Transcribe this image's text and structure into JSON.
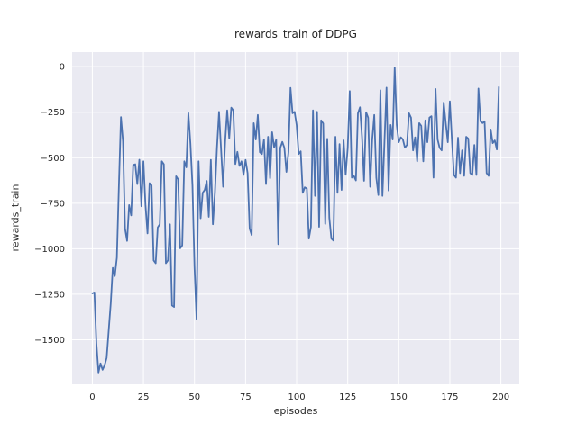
{
  "title": "rewards_train of DDPG",
  "xlabel": "episodes",
  "ylabel": "rewards_train",
  "colors": {
    "figure_background": "#ffffff",
    "panel_background": "#eaeaf2",
    "grid": "#ffffff",
    "line": "#4c72b0",
    "text": "#262626"
  },
  "chart_data": {
    "type": "line",
    "title": "rewards_train of DDPG",
    "xlabel": "episodes",
    "ylabel": "rewards_train",
    "grid": true,
    "legend_position": "none",
    "xlim": [
      -9.9,
      209
    ],
    "ylim": [
      -1745,
      80
    ],
    "xticks": [
      0,
      25,
      50,
      75,
      100,
      125,
      150,
      175,
      200
    ],
    "xtick_labels": [
      "0",
      "25",
      "50",
      "75",
      "100",
      "125",
      "150",
      "175",
      "200"
    ],
    "yticks": [
      0,
      -250,
      -500,
      -750,
      -1000,
      -1250,
      -1500
    ],
    "ytick_labels": [
      "0",
      "−250",
      "−500",
      "−750",
      "−1000",
      "−1250",
      "−1500"
    ],
    "x_start": 0,
    "x_step": 1,
    "series": [
      {
        "name": "rewards_train",
        "color": "#4c72b0",
        "values": [
          -1245,
          -1240,
          -1520,
          -1680,
          -1630,
          -1665,
          -1640,
          -1600,
          -1450,
          -1300,
          -1105,
          -1150,
          -1050,
          -652,
          -277,
          -410,
          -890,
          -957,
          -760,
          -817,
          -540,
          -536,
          -645,
          -511,
          -767,
          -520,
          -760,
          -916,
          -640,
          -652,
          -1064,
          -1080,
          -883,
          -866,
          -520,
          -536,
          -1080,
          -1064,
          -866,
          -1312,
          -1320,
          -602,
          -619,
          -998,
          -982,
          -520,
          -553,
          -255,
          -421,
          -652,
          -1100,
          -1386,
          -520,
          -833,
          -693,
          -677,
          -628,
          -825,
          -512,
          -866,
          -693,
          -446,
          -248,
          -454,
          -660,
          -413,
          -240,
          -395,
          -225,
          -240,
          -535,
          -468,
          -545,
          -520,
          -595,
          -512,
          -585,
          -890,
          -925,
          -310,
          -400,
          -265,
          -470,
          -480,
          -400,
          -645,
          -385,
          -613,
          -360,
          -445,
          -400,
          -975,
          -446,
          -413,
          -446,
          -578,
          -470,
          -116,
          -256,
          -248,
          -321,
          -480,
          -465,
          -693,
          -663,
          -670,
          -945,
          -880,
          -240,
          -710,
          -248,
          -880,
          -295,
          -312,
          -864,
          -396,
          -830,
          -945,
          -955,
          -385,
          -693,
          -425,
          -677,
          -405,
          -594,
          -446,
          -134,
          -610,
          -600,
          -625,
          -256,
          -223,
          -385,
          -627,
          -250,
          -280,
          -660,
          -400,
          -265,
          -610,
          -705,
          -130,
          -710,
          -410,
          -115,
          -680,
          -320,
          -400,
          -5,
          -320,
          -415,
          -388,
          -400,
          -445,
          -430,
          -256,
          -280,
          -460,
          -388,
          -520,
          -310,
          -325,
          -520,
          -295,
          -415,
          -280,
          -272,
          -610,
          -122,
          -400,
          -446,
          -460,
          -197,
          -310,
          -415,
          -190,
          -400,
          -595,
          -610,
          -390,
          -585,
          -460,
          -600,
          -385,
          -395,
          -585,
          -595,
          -430,
          -595,
          -120,
          -300,
          -310,
          -300,
          -585,
          -600,
          -345,
          -420,
          -405,
          -455,
          -112
        ]
      }
    ]
  }
}
